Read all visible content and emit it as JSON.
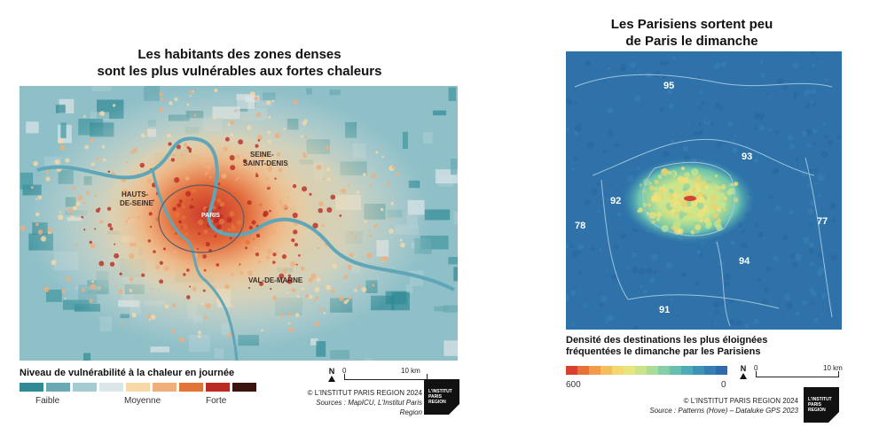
{
  "left": {
    "title_line1": "Les habitants des zones denses",
    "title_line2": "sont les plus vulnérables aux fortes chaleurs",
    "place_labels": [
      "SEINE-SAINT-DENIS",
      "HAUTS-DE-SEINE",
      "PARIS",
      "VAL-DE-MARNE"
    ],
    "legend_title": "Niveau de vulnérabilité à la chaleur en journée",
    "legend_colors": [
      "#2f8a96",
      "#6aa9b3",
      "#a5cbd2",
      "#dbe6ea",
      "#f7d8a6",
      "#f0ae7a",
      "#e37438",
      "#bc2b22",
      "#3b1410"
    ],
    "legend_labels": {
      "low": "Faible",
      "mid": "Moyenne",
      "high": "Forte"
    },
    "scale": {
      "zero": "0",
      "max": "10 km"
    },
    "north": "N",
    "copyright": "© L'INSTITUT PARIS REGION 2024",
    "sources": "Sources : MapICU, L'Institut Paris Region",
    "logo_lines": [
      "L'INSTITUT",
      "PARIS",
      "REGION"
    ]
  },
  "right": {
    "title_line1": "Les Parisiens sortent peu",
    "title_line2": "de Paris le dimanche",
    "departments": [
      "95",
      "93",
      "92",
      "78",
      "77",
      "94",
      "91"
    ],
    "legend_title_line1": "Densité des destinations les plus éloignées",
    "legend_title_line2": "fréquentées le dimanche par les Parisiens",
    "legend_colors": [
      "#d7402e",
      "#e8713a",
      "#f19a4a",
      "#f5bd5c",
      "#f3d770",
      "#e6e57e",
      "#c9e48a",
      "#a8dc98",
      "#86cfa6",
      "#68bfb0",
      "#4eaab4",
      "#3e93b5",
      "#357db3",
      "#2f6aae"
    ],
    "legend_labels": {
      "max": "600",
      "min": "0"
    },
    "scale": {
      "zero": "0",
      "max": "10 km"
    },
    "north": "N",
    "copyright": "© L'INSTITUT PARIS REGION 2024",
    "sources": "Source : Patterns (Hove) – Dataluke GPS 2023",
    "logo_lines": [
      "L'INSTITUT",
      "PARIS",
      "REGION"
    ]
  }
}
